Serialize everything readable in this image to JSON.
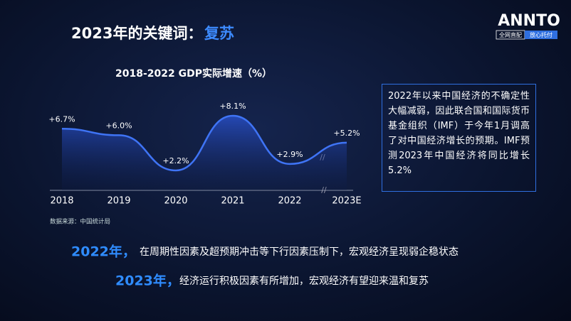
{
  "header": {
    "title": "2023年的关键词：",
    "keyword": "复苏"
  },
  "logo": {
    "brand": "ANNTO",
    "tag1": "全网直配",
    "tag2": "放心托付"
  },
  "chart_data": {
    "type": "line",
    "title": "2018-2022 GDP实际增速（%）",
    "categories": [
      "2018",
      "2019",
      "2020",
      "2021",
      "2022",
      "2023E"
    ],
    "values": [
      6.7,
      6.0,
      2.2,
      8.1,
      2.9,
      5.2
    ],
    "value_labels": [
      "+6.7%",
      "+6.0%",
      "+2.2%",
      "+8.1%",
      "+2.9%",
      "+5.2%"
    ],
    "color": "#3f74f5",
    "source": "数据来源：中国统计局"
  },
  "note": "2022年以来中国经济的不确定性大幅减弱，因此联合国和国际货币基金组织（IMF）于今年1月调高了对中国经济增长的预期。IMF预测2023年中国经济将同比增长5.2%",
  "statements": [
    {
      "year": "2022年，",
      "text": "在周期性因素及超预期冲击等下行因素压制下，宏观经济呈现弱企稳状态"
    },
    {
      "year": "2023年，",
      "text": "经济运行积极因素有所增加，宏观经济有望迎来温和复苏"
    }
  ]
}
